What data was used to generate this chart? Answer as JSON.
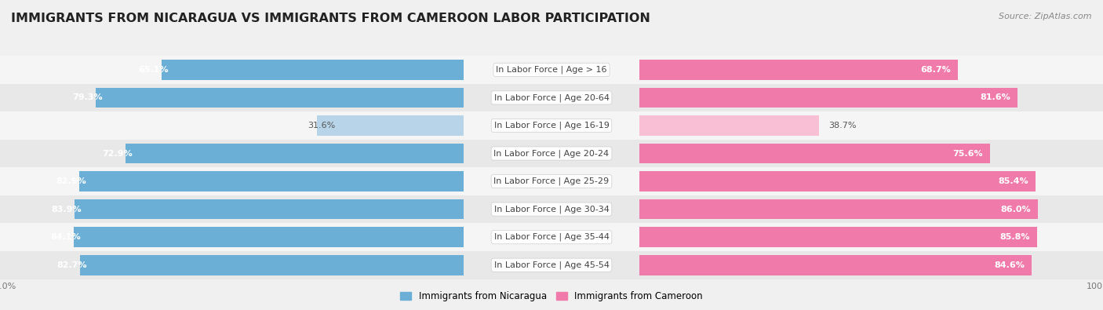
{
  "title": "IMMIGRANTS FROM NICARAGUA VS IMMIGRANTS FROM CAMEROON LABOR PARTICIPATION",
  "source": "Source: ZipAtlas.com",
  "categories": [
    "In Labor Force | Age > 16",
    "In Labor Force | Age 20-64",
    "In Labor Force | Age 16-19",
    "In Labor Force | Age 20-24",
    "In Labor Force | Age 25-29",
    "In Labor Force | Age 30-34",
    "In Labor Force | Age 35-44",
    "In Labor Force | Age 45-54"
  ],
  "nicaragua_values": [
    65.1,
    79.3,
    31.6,
    72.9,
    82.9,
    83.9,
    84.1,
    82.7
  ],
  "cameroon_values": [
    68.7,
    81.6,
    38.7,
    75.6,
    85.4,
    86.0,
    85.8,
    84.6
  ],
  "nicaragua_color": "#6baed6",
  "cameroon_color": "#f07aaa",
  "nicaragua_color_light": "#b8d4e8",
  "cameroon_color_light": "#f9c0d5",
  "bar_height": 0.72,
  "background_color": "#f0f0f0",
  "row_bg_light": "#f5f5f5",
  "row_bg_dark": "#e8e8e8",
  "legend_nicaragua": "Immigrants from Nicaragua",
  "legend_cameroon": "Immigrants from Cameroon",
  "title_fontsize": 11.5,
  "label_fontsize": 8,
  "value_fontsize": 8,
  "legend_fontsize": 8.5,
  "source_fontsize": 8,
  "axis_tick_fontsize": 8
}
